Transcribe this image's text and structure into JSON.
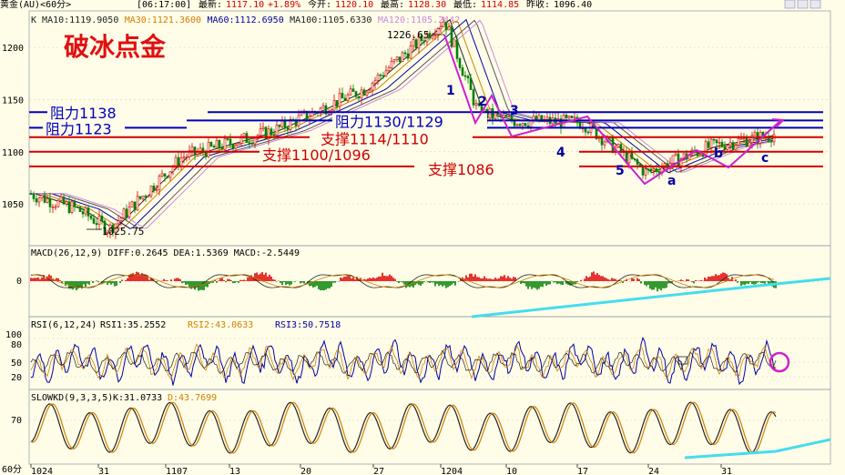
{
  "header": {
    "instrument": "黄金(AU)<60分>",
    "time": "[06:17:00]",
    "last_label": "最新:",
    "last": "1117.10",
    "change": "+1.89%",
    "open_label": "今开:",
    "open": "1120.10",
    "high_label": "最高:",
    "high": "1128.30",
    "low_label": "最低:",
    "low": "1114.85",
    "prev_label": "昨收:",
    "prev": "1096.40"
  },
  "main_panel": {
    "ma_line": [
      {
        "text": "K",
        "color": "#222222"
      },
      {
        "text": "MA10:1119.9050",
        "color": "#222222"
      },
      {
        "text": "MA30:1121.3600",
        "color": "#d08000"
      },
      {
        "text": "MA60:1112.6950",
        "color": "#0000a0"
      },
      {
        "text": "MA100:1105.6330",
        "color": "#222222"
      },
      {
        "text": "MA120:1105.2442",
        "color": "#cc88dd"
      }
    ],
    "title": "破冰点金",
    "title_color": "#e01010",
    "y_ticks": [
      "1200",
      "1150",
      "1100",
      "1050"
    ],
    "high_marker": "1226.65",
    "low_marker": "1025.75",
    "levels": [
      {
        "label": "阻力1138",
        "value": 1138,
        "color": "#0000c0"
      },
      {
        "label": "阻力1123",
        "value": 1123,
        "color": "#0000c0"
      },
      {
        "label": "阻力1130/1129",
        "value": 1130,
        "color": "#0000c0"
      },
      {
        "label": "支撑1114/1110",
        "value": 1114,
        "color": "#d00000"
      },
      {
        "label": "支撑1100/1096",
        "value": 1100,
        "color": "#d00000"
      },
      {
        "label": "支撑1086",
        "value": 1086,
        "color": "#d00000"
      }
    ],
    "wave_labels": [
      "1",
      "2",
      "3",
      "4",
      "5",
      "a",
      "b",
      "c"
    ],
    "wave_color": "#cc22cc"
  },
  "macd_panel": {
    "header": "MACD(26,12,9)  DIFF:0.2645  DEA:1.5369  MACD:-2.5449",
    "zero_label": "0"
  },
  "rsi_panel": {
    "header_name": "RSI(6,12,24)",
    "rsi1": "RSI1:35.2552",
    "rsi2": "RSI2:43.0633",
    "rsi3": "RSI3:50.7518",
    "ticks": [
      "100",
      "80",
      "50",
      "20"
    ]
  },
  "kd_panel": {
    "header_name": "SLOWKD(9,3,3,5)",
    "k": "K:31.0733",
    "d": "D:43.7699",
    "ticks": [
      "70"
    ]
  },
  "x_axis": {
    "period": "60分",
    "labels": [
      "1024",
      "31",
      "1107",
      "13",
      "20",
      "27",
      "1204",
      "10",
      "17",
      "24",
      "31"
    ]
  },
  "chart_data": {
    "type": "candlestick",
    "title": "破冰点金",
    "ylim": [
      1010,
      1235
    ],
    "key_points": [
      {
        "x": "1024",
        "close": 1060
      },
      {
        "x": "1107",
        "close": 1025.75
      },
      {
        "x": "13",
        "close": 1095
      },
      {
        "x": "20",
        "close": 1140
      },
      {
        "x": "27",
        "close": 1185
      },
      {
        "x": "1204",
        "close": 1226.65
      },
      {
        "x": "10",
        "close": 1140
      },
      {
        "x": "17",
        "close": 1130
      },
      {
        "x": "24",
        "close": 1080
      },
      {
        "x": "31",
        "close": 1105
      },
      {
        "x": "end",
        "close": 1117.1
      }
    ],
    "levels": [
      1138,
      1130,
      1123,
      1114,
      1100,
      1086
    ]
  }
}
